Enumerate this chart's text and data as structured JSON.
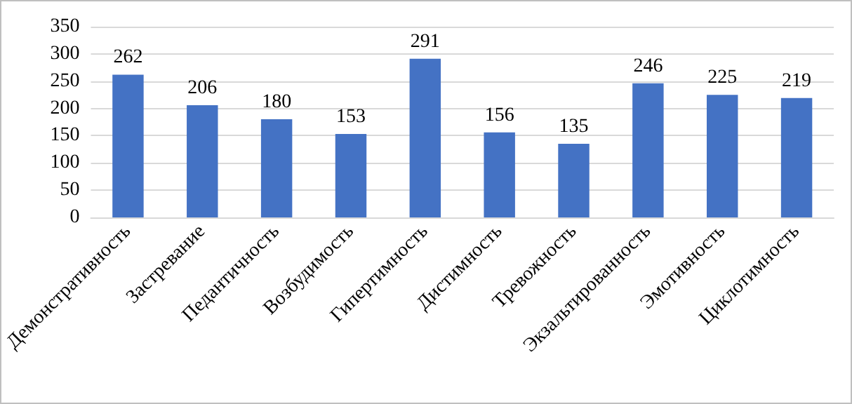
{
  "chart_data": {
    "type": "bar",
    "categories": [
      "Демонстративность",
      "Застревание",
      "Педантичность",
      "Возбудимость",
      "Гипертимность",
      "Дистимность",
      "Тревожность",
      "Экзальтированность",
      "Эмотивность",
      "Циклотимность"
    ],
    "values": [
      262,
      206,
      180,
      153,
      291,
      156,
      135,
      246,
      225,
      219
    ],
    "color": "#4472c4",
    "ylim": [
      0,
      350
    ],
    "yticks": [
      0,
      50,
      100,
      150,
      200,
      250,
      300,
      350
    ],
    "grid": "y",
    "data_labels": true
  }
}
